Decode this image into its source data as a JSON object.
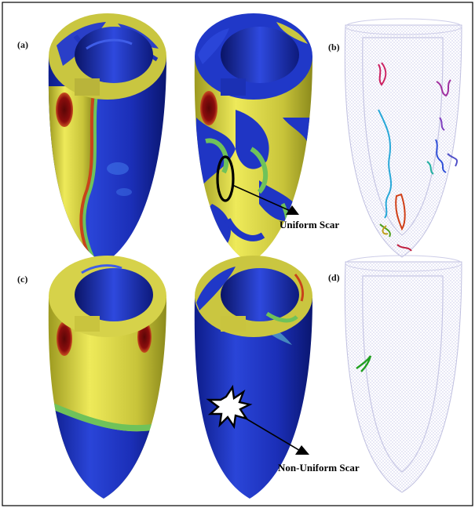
{
  "figure": {
    "panels": [
      {
        "id": "a",
        "label": "(a)"
      },
      {
        "id": "b",
        "label": "(b)"
      },
      {
        "id": "c",
        "label": "(c)"
      },
      {
        "id": "d",
        "label": "(d)"
      }
    ],
    "annotations": {
      "uniform_scar": "Uniform Scar",
      "non_uniform_scar": "Non-Uniform Scar"
    },
    "colors": {
      "tissue_blue": "#1a2fb5",
      "activation_yellow": "#d8d23a",
      "activation_green": "#7fc25a",
      "activation_red": "#8b0d0d",
      "wireframe": "#c8c8e6",
      "frame_border": "#000000"
    }
  }
}
